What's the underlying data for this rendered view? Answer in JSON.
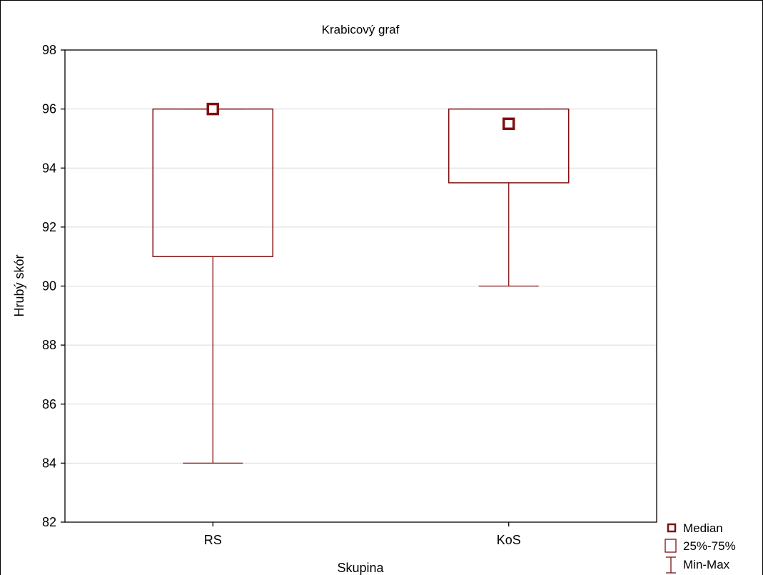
{
  "chart_data": {
    "type": "boxplot",
    "title": "Krabicový graf",
    "xlabel": "Skupina",
    "ylabel": "Hrubý skór",
    "ylim": [
      82,
      98
    ],
    "yticks": [
      82,
      84,
      86,
      88,
      90,
      92,
      94,
      96,
      98
    ],
    "grid": true,
    "categories": [
      "RS",
      "KoS"
    ],
    "boxes": [
      {
        "category": "RS",
        "min": 84,
        "q1": 91,
        "median": 96,
        "q3": 96,
        "max": 96
      },
      {
        "category": "KoS",
        "min": 90,
        "q1": 93.5,
        "median": 95.5,
        "q3": 96,
        "max": 96
      }
    ],
    "legend": {
      "position": "bottom-right",
      "entries": [
        "Median",
        "25%-75%",
        "Min-Max"
      ]
    }
  },
  "colors": {
    "series": "#7f1010",
    "grid": "#d9d9d9",
    "axis": "#000000"
  }
}
